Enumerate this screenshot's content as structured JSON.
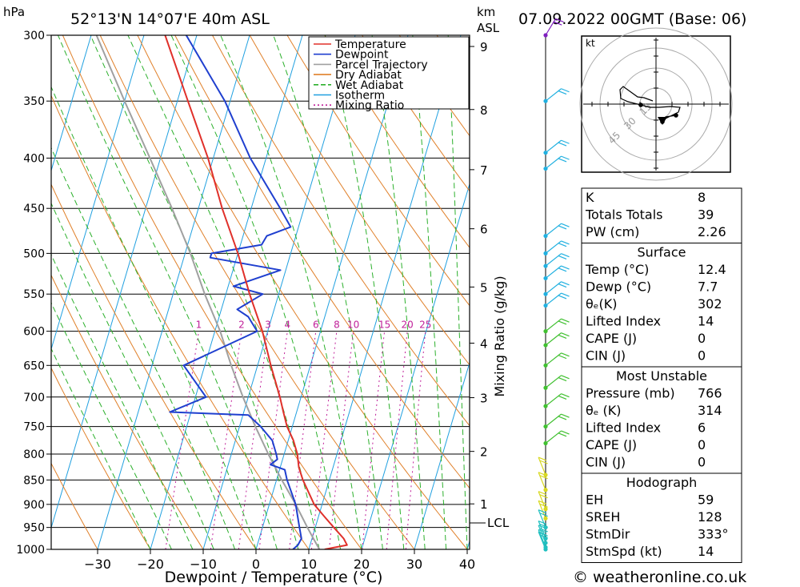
{
  "header": {
    "pressure_unit": "hPa",
    "location": "52°13'N  14°07'E  40m  ASL",
    "km_unit": "km",
    "asl_unit": "ASL",
    "datetime": "07.09.2022  00GMT  (Base: 06)"
  },
  "footer": {
    "credit": "© weatheronline.co.uk"
  },
  "chart_data": {
    "type": "line",
    "subtype": "skew-T log-P sounding",
    "xlabel": "Dewpoint / Temperature (°C)",
    "ylabel": "hPa",
    "right_axis_label": "Mixing Ratio (g/kg)",
    "x_ticks": [
      -30,
      -20,
      -10,
      0,
      10,
      20,
      30,
      40
    ],
    "pressure_levels": [
      300,
      350,
      400,
      450,
      500,
      550,
      600,
      650,
      700,
      750,
      800,
      850,
      900,
      950,
      1000
    ],
    "km_ticks": [
      {
        "km": 1,
        "p": 899
      },
      {
        "km": 2,
        "p": 795
      },
      {
        "km": 3,
        "p": 701
      },
      {
        "km": 4,
        "p": 617
      },
      {
        "km": 5,
        "p": 541
      },
      {
        "km": 6,
        "p": 472
      },
      {
        "km": 7,
        "p": 411
      },
      {
        "km": 8,
        "p": 357
      },
      {
        "km": 9,
        "p": 308
      }
    ],
    "lcl": {
      "label": "LCL",
      "p": 940
    },
    "mixing_ratio_labels": [
      "1",
      "2",
      "3",
      "4",
      "6",
      "8",
      "10",
      "15",
      "20",
      "25"
    ],
    "legend_position": "top-right",
    "legend": [
      {
        "name": "Temperature",
        "color": "#e0302a"
      },
      {
        "name": "Dewpoint",
        "color": "#1f3fcf"
      },
      {
        "name": "Parcel Trajectory",
        "color": "#a0a0a0"
      },
      {
        "name": "Dry Adiabat",
        "color": "#e0802a"
      },
      {
        "name": "Wet Adiabat",
        "color": "#2cb02c"
      },
      {
        "name": "Isotherm",
        "color": "#20a0e0"
      },
      {
        "name": "Mixing Ratio",
        "color": "#c0209a"
      }
    ],
    "series": [
      {
        "name": "Temperature",
        "points": [
          [
            1000,
            13
          ],
          [
            990,
            17
          ],
          [
            975,
            16
          ],
          [
            950,
            13.5
          ],
          [
            925,
            11
          ],
          [
            900,
            8.5
          ],
          [
            850,
            5
          ],
          [
            825,
            3.5
          ],
          [
            800,
            2.5
          ],
          [
            775,
            1
          ],
          [
            750,
            -1
          ],
          [
            725,
            -2.5
          ],
          [
            700,
            -4
          ],
          [
            650,
            -7.5
          ],
          [
            600,
            -11
          ],
          [
            550,
            -15.5
          ],
          [
            500,
            -20
          ],
          [
            450,
            -25.5
          ],
          [
            400,
            -31
          ],
          [
            350,
            -38
          ],
          [
            300,
            -46
          ]
        ]
      },
      {
        "name": "Dewpoint",
        "points": [
          [
            1000,
            7
          ],
          [
            990,
            7.7
          ],
          [
            975,
            8
          ],
          [
            950,
            7
          ],
          [
            900,
            5
          ],
          [
            850,
            2
          ],
          [
            830,
            1
          ],
          [
            820,
            -2
          ],
          [
            810,
            -1
          ],
          [
            800,
            -1.5
          ],
          [
            775,
            -3
          ],
          [
            750,
            -6
          ],
          [
            730,
            -9
          ],
          [
            725,
            -24
          ],
          [
            700,
            -18
          ],
          [
            650,
            -24
          ],
          [
            600,
            -12
          ],
          [
            580,
            -14.5
          ],
          [
            570,
            -17
          ],
          [
            550,
            -13
          ],
          [
            540,
            -19
          ],
          [
            520,
            -11
          ],
          [
            505,
            -25
          ],
          [
            500,
            -25
          ],
          [
            490,
            -16
          ],
          [
            480,
            -15.5
          ],
          [
            470,
            -11.5
          ],
          [
            450,
            -14.5
          ],
          [
            400,
            -23
          ],
          [
            350,
            -31
          ],
          [
            300,
            -42
          ]
        ]
      },
      {
        "name": "Parcel Trajectory",
        "points": [
          [
            1000,
            12
          ],
          [
            950,
            8.5
          ],
          [
            900,
            5
          ],
          [
            850,
            1
          ],
          [
            800,
            -3
          ],
          [
            750,
            -7
          ],
          [
            700,
            -11
          ],
          [
            650,
            -15
          ],
          [
            600,
            -19
          ],
          [
            550,
            -24
          ],
          [
            500,
            -29
          ],
          [
            450,
            -35
          ],
          [
            400,
            -42
          ],
          [
            350,
            -50
          ],
          [
            300,
            -59
          ]
        ]
      }
    ],
    "hodograph": {
      "unit": "kt",
      "ring_labels": [
        "15",
        "30",
        "45"
      ]
    },
    "indices": {
      "basic": [
        {
          "label": "K",
          "value": "8"
        },
        {
          "label": "Totals Totals",
          "value": "39"
        },
        {
          "label": "PW (cm)",
          "value": "2.26"
        }
      ],
      "surface_title": "Surface",
      "surface": [
        {
          "label": "Temp (°C)",
          "value": "12.4"
        },
        {
          "label": "Dewp (°C)",
          "value": "7.7"
        },
        {
          "label": "θE(K)",
          "value": "302"
        },
        {
          "label": "Lifted Index",
          "value": "14"
        },
        {
          "label": "CAPE (J)",
          "value": "0"
        },
        {
          "label": "CIN (J)",
          "value": "0"
        }
      ],
      "unstable_title": "Most Unstable",
      "unstable": [
        {
          "label": "Pressure (mb)",
          "value": "766"
        },
        {
          "label": "θE (K)",
          "value": "314"
        },
        {
          "label": "Lifted Index",
          "value": "6"
        },
        {
          "label": "CAPE (J)",
          "value": "0"
        },
        {
          "label": "CIN (J)",
          "value": "0"
        }
      ],
      "hodo_title": "Hodograph",
      "hodo": [
        {
          "label": "EH",
          "value": "59"
        },
        {
          "label": "SREH",
          "value": "128"
        },
        {
          "label": "StmDir",
          "value": "333°"
        },
        {
          "label": "StmSpd (kt)",
          "value": "14"
        }
      ]
    }
  }
}
